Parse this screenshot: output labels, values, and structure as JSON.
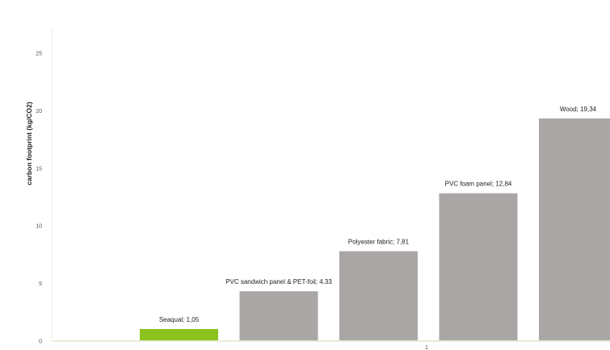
{
  "chart_data": {
    "type": "bar",
    "title": "",
    "xlabel": "",
    "ylabel": "carbon footprint (kg/CO2)",
    "ylim": [
      0,
      25
    ],
    "yticks": [
      0,
      5,
      10,
      15,
      20,
      25
    ],
    "grid": false,
    "legend": "none",
    "categories": [
      "Seaqual",
      "PVC sandwich panel & PET-foil",
      "Polyester fabric",
      "PVC foam panel",
      "Wood"
    ],
    "values": [
      1.05,
      4.33,
      7.81,
      12.84,
      19.34
    ],
    "data_labels": [
      "Seaqual; 1,05",
      "PVC sandwich panel & PET-foil; 4.33",
      "Polyester fabric; 7,81",
      "PVC foam panel; 12,84",
      "Wood; 19,34"
    ],
    "x_axis_mark": "1",
    "colors": {
      "highlight": "#8cc21e",
      "default": "#aaa6a6",
      "axis": "#e6ecd6",
      "frame": "#eeeeee"
    }
  }
}
